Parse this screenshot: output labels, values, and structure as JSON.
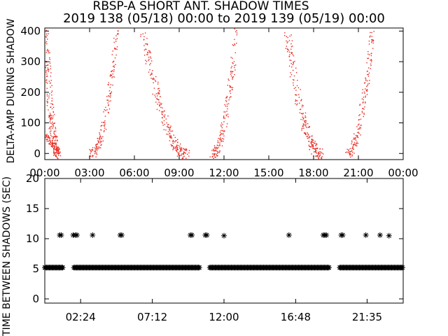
{
  "title": "RBSP-A SHORT ANT. SHADOW TIMES",
  "subtitle": "2019 138 (05/18) 00:00 to 2019 139 (05/19) 00:00",
  "colors": {
    "points": "#e8281e",
    "axes": "#000000",
    "background": "#ffffff"
  },
  "chart_data": [
    {
      "type": "scatter",
      "title": "RBSP-A SHORT ANT. SHADOW TIMES",
      "ylabel": "DELTA-AMP DURING SHADOW",
      "xlabel": "",
      "xlim": [
        0,
        24
      ],
      "ylim": [
        -20,
        410
      ],
      "xticks": [
        "00:00",
        "03:00",
        "06:00",
        "09:00",
        "12:00",
        "15:00",
        "18:00",
        "21:00",
        "00:00"
      ],
      "xtick_values": [
        0,
        3,
        6,
        9,
        12,
        15,
        18,
        21,
        24
      ],
      "yticks": [
        0,
        100,
        200,
        300,
        400
      ],
      "series": [
        {
          "color": "#e8281e",
          "arches": [
            {
              "rise_start_h": 3.1,
              "rise_end_h": 4.8,
              "fall_start_h": 6.6,
              "fall_end_h": 9.5,
              "peak": 400
            },
            {
              "rise_start_h": 11.2,
              "rise_end_h": 12.8,
              "fall_start_h": 16.2,
              "fall_end_h": 18.5,
              "peak": 400
            },
            {
              "rise_start_h": 20.2,
              "rise_end_h": 21.9,
              "fall_start_h": 0,
              "fall_end_h": 0.9,
              "peak": 400
            }
          ]
        }
      ]
    },
    {
      "type": "scatter",
      "ylabel": "TIME BETWEEN SHADOWS (SEC)",
      "xlabel": "",
      "xlim": [
        0,
        24
      ],
      "ylim": [
        -0.7,
        20
      ],
      "xticks": [
        "02:24",
        "07:12",
        "12:00",
        "16:48",
        "21:35"
      ],
      "xtick_values": [
        2.4,
        7.2,
        12.0,
        16.8,
        21.583
      ],
      "yticks": [
        0,
        5,
        10,
        15,
        20
      ],
      "series": [
        {
          "marker": "asterisk",
          "baseline_value": 5.2,
          "baseline_segments_h": [
            [
              0,
              1.25
            ],
            [
              1.95,
              10.35
            ],
            [
              11.05,
              19.05
            ],
            [
              19.75,
              24
            ]
          ],
          "high_points": [
            {
              "x": 1.0,
              "y": 10.6
            },
            {
              "x": 1.1,
              "y": 10.6
            },
            {
              "x": 1.9,
              "y": 10.6
            },
            {
              "x": 2.05,
              "y": 10.6
            },
            {
              "x": 2.15,
              "y": 10.6
            },
            {
              "x": 3.2,
              "y": 10.6
            },
            {
              "x": 5.05,
              "y": 10.6
            },
            {
              "x": 5.15,
              "y": 10.6
            },
            {
              "x": 9.75,
              "y": 10.6
            },
            {
              "x": 9.85,
              "y": 10.6
            },
            {
              "x": 10.75,
              "y": 10.6
            },
            {
              "x": 10.85,
              "y": 10.6
            },
            {
              "x": 12.0,
              "y": 10.5
            },
            {
              "x": 16.35,
              "y": 10.6
            },
            {
              "x": 18.65,
              "y": 10.6
            },
            {
              "x": 18.75,
              "y": 10.6
            },
            {
              "x": 18.85,
              "y": 10.6
            },
            {
              "x": 19.85,
              "y": 10.6
            },
            {
              "x": 19.95,
              "y": 10.6
            },
            {
              "x": 21.5,
              "y": 10.6
            },
            {
              "x": 22.45,
              "y": 10.6
            },
            {
              "x": 23.05,
              "y": 10.5
            }
          ]
        }
      ]
    }
  ]
}
